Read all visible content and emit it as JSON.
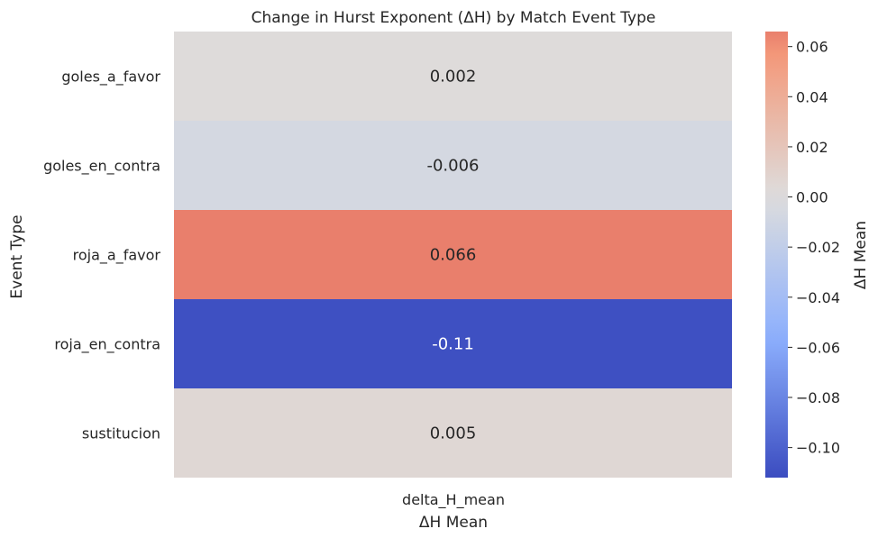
{
  "chart_data": {
    "type": "heatmap",
    "title": "Change in Hurst Exponent (ΔH) by Match Event Type",
    "xlabel": "ΔH Mean",
    "ylabel": "Event Type",
    "columns": [
      "delta_H_mean"
    ],
    "rows": [
      "goles_a_favor",
      "goles_en_contra",
      "roja_a_favor",
      "roja_en_contra",
      "sustitucion"
    ],
    "values": [
      0.002,
      -0.006,
      0.066,
      -0.11,
      0.005
    ],
    "annotations": [
      "0.002",
      "-0.006",
      "0.066",
      "-0.11",
      "0.005"
    ],
    "colormap": "coolwarm",
    "center": 0,
    "colorbar": {
      "label": "ΔH Mean",
      "range": [
        -0.112,
        0.066
      ],
      "ticks": [
        0.06,
        0.04,
        0.02,
        0.0,
        -0.02,
        -0.04,
        -0.06,
        -0.08,
        -0.1
      ],
      "tick_labels": [
        "0.06",
        "0.04",
        "0.02",
        "0.00",
        "−0.02",
        "−0.04",
        "−0.06",
        "−0.08",
        "−0.10"
      ]
    },
    "colors": {
      "cell_near_zero_pos": "#dfdad6",
      "cell_near_zero_neg": "#d5dbe4",
      "cell_max": "#ee8468",
      "cell_min": "#3b4cc0"
    },
    "grid": false,
    "legend": "colorbar-right"
  }
}
